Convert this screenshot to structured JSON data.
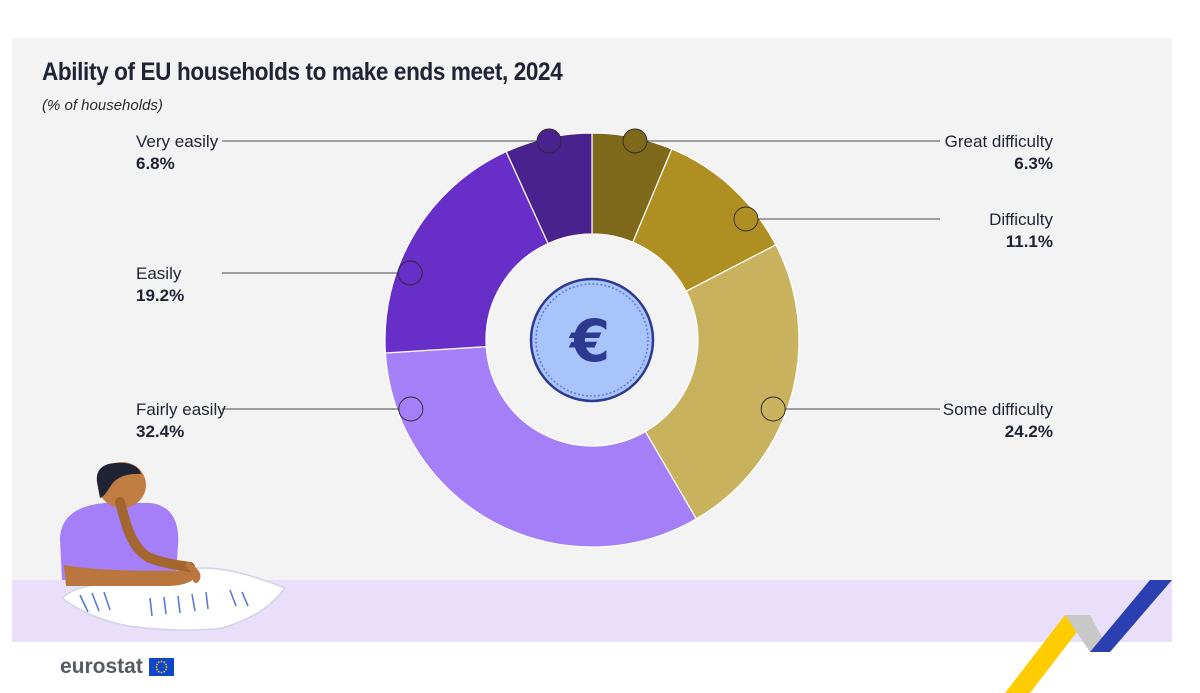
{
  "header": {
    "title": "Ability of EU households to make ends meet, 2024",
    "subtitle": "(% of households)"
  },
  "brand": {
    "logo_text": "eurostat"
  },
  "center_icon": {
    "icon": "euro-coin-icon",
    "symbol": "€"
  },
  "chart_data": {
    "type": "pie",
    "variant": "donut",
    "title": "Ability of EU households to make ends meet, 2024",
    "subtitle": "(% of households)",
    "unit": "%",
    "slices": [
      {
        "label": "Great difficulty",
        "display": "6.3%",
        "value": 6.3,
        "color": "#7e6819"
      },
      {
        "label": "Difficulty",
        "display": "11.1%",
        "value": 11.1,
        "color": "#af8f22"
      },
      {
        "label": "Some difficulty",
        "display": "24.2%",
        "value": 24.2,
        "color": "#c8b25e"
      },
      {
        "label": "Fairly easily",
        "display": "32.4%",
        "value": 32.4,
        "color": "#a57ff7"
      },
      {
        "label": "Easily",
        "display": "19.2%",
        "value": 19.2,
        "color": "#672ec8"
      },
      {
        "label": "Very easily",
        "display": "6.8%",
        "value": 6.8,
        "color": "#4a228d"
      }
    ]
  },
  "colors": {
    "panel_background": "#f3f3f3",
    "band_background": "#e9dffa",
    "coin_fill": "#a8c4fb",
    "coin_symbol": "#2d3a8f",
    "eu_blue": "#0e47cb",
    "eu_yellow": "#ffcc00"
  }
}
